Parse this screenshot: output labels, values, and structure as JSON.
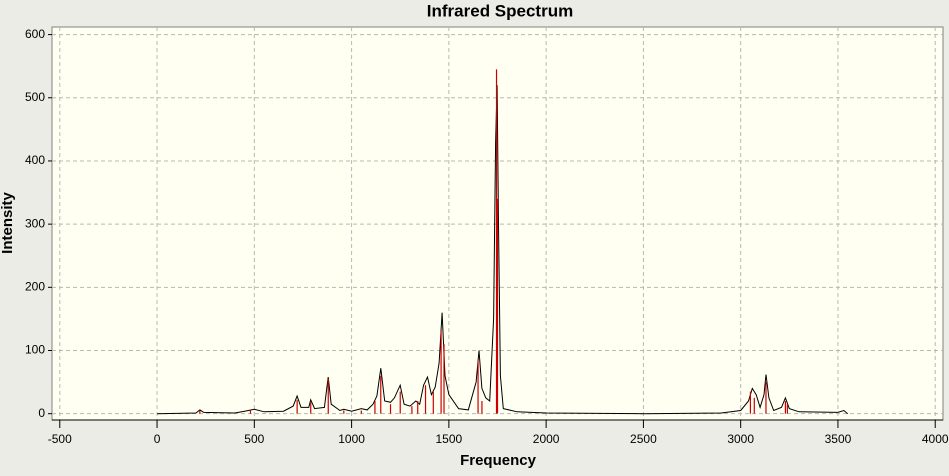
{
  "chart_data": {
    "type": "line",
    "title": "Infrared Spectrum",
    "x_label": "Frequency",
    "y_label": "Intensity",
    "xlim": [
      -540,
      4040
    ],
    "ylim": [
      -10,
      612
    ],
    "xticks": [
      -500,
      0,
      500,
      1000,
      1500,
      2000,
      2500,
      3000,
      3500,
      4000
    ],
    "yticks": [
      0,
      100,
      200,
      300,
      400,
      500,
      600
    ],
    "grid": true,
    "series": [
      {
        "style": "line",
        "color": "#000000",
        "x": [
          0,
          200,
          220,
          240,
          400,
          450,
          500,
          550,
          650,
          700,
          720,
          740,
          780,
          790,
          810,
          860,
          880,
          895,
          940,
          960,
          1000,
          1050,
          1080,
          1110,
          1130,
          1150,
          1170,
          1200,
          1220,
          1250,
          1270,
          1300,
          1330,
          1350,
          1370,
          1390,
          1410,
          1430,
          1450,
          1465,
          1480,
          1500,
          1550,
          1600,
          1640,
          1655,
          1670,
          1690,
          1710,
          1730,
          1740,
          1748,
          1755,
          1765,
          1780,
          1850,
          2000,
          2500,
          2900,
          3000,
          3040,
          3060,
          3080,
          3100,
          3120,
          3130,
          3145,
          3170,
          3210,
          3230,
          3250,
          3300,
          3500,
          3530,
          3550
        ],
        "values": [
          0,
          1,
          6,
          2,
          1,
          4,
          7,
          3,
          4,
          12,
          28,
          10,
          10,
          22,
          8,
          10,
          58,
          15,
          5,
          7,
          4,
          8,
          6,
          15,
          28,
          72,
          20,
          18,
          25,
          45,
          15,
          12,
          20,
          15,
          45,
          58,
          30,
          42,
          80,
          160,
          60,
          30,
          8,
          6,
          50,
          100,
          40,
          25,
          20,
          150,
          430,
          520,
          300,
          60,
          8,
          3,
          1,
          0,
          1,
          5,
          20,
          40,
          30,
          10,
          30,
          62,
          25,
          5,
          10,
          25,
          8,
          3,
          2,
          5,
          0
        ]
      },
      {
        "style": "sticks",
        "color": "#cc0000",
        "x": [
          220,
          480,
          720,
          790,
          880,
          960,
          1050,
          1120,
          1150,
          1200,
          1250,
          1310,
          1340,
          1380,
          1420,
          1460,
          1475,
          1650,
          1670,
          1745,
          1750,
          3050,
          3070,
          3130,
          3230,
          3240
        ],
        "values": [
          5,
          6,
          22,
          18,
          55,
          5,
          5,
          20,
          60,
          15,
          35,
          12,
          20,
          45,
          35,
          130,
          110,
          85,
          20,
          545,
          340,
          35,
          25,
          50,
          20,
          15
        ]
      }
    ]
  }
}
